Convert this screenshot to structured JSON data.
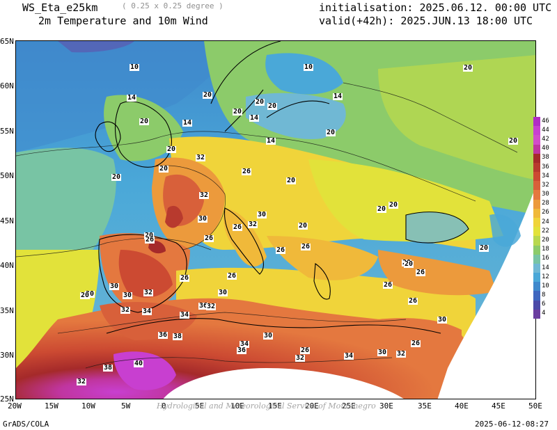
{
  "header": {
    "model": "WS_Eta_e25km",
    "resolution": "( 0.25 x 0.25 degree )",
    "field": "2m Temperature and 10m Wind",
    "init": "initialisation: 2025.06.12. 00:00 UTC",
    "valid": "valid(+42h): 2025.JUN.13 18:00 UTC"
  },
  "axes": {
    "lat_labels": [
      "65N",
      "60N",
      "55N",
      "50N",
      "45N",
      "40N",
      "35N",
      "30N",
      "25N"
    ],
    "lon_labels": [
      "20W",
      "15W",
      "10W",
      "5W",
      "0",
      "5E",
      "10E",
      "15E",
      "20E",
      "25E",
      "30E",
      "35E",
      "40E",
      "45E",
      "50E"
    ]
  },
  "colorbar": {
    "labels": [
      "46",
      "44",
      "42",
      "40",
      "38",
      "36",
      "34",
      "32",
      "30",
      "28",
      "26",
      "24",
      "22",
      "20",
      "18",
      "16",
      "14",
      "12",
      "10",
      "8",
      "6",
      "4"
    ],
    "colors": [
      "#b12cc6",
      "#c83fd0",
      "#d24cc9",
      "#c0359f",
      "#a52a2a",
      "#b83a2e",
      "#cc4a32",
      "#d8603a",
      "#e4783f",
      "#ec9a3c",
      "#f0b93a",
      "#f0d43a",
      "#e2e23a",
      "#b8d84e",
      "#8ccb6a",
      "#78c4a4",
      "#70b8d4",
      "#4aa8d8",
      "#3f89cc",
      "#3f67bf",
      "#4b4aa8",
      "#6b3fa0"
    ]
  },
  "contour_labels": [
    {
      "text": "10"
    },
    {
      "text": "10"
    },
    {
      "text": "20"
    },
    {
      "text": "14"
    },
    {
      "text": "20"
    },
    {
      "text": "20"
    },
    {
      "text": "14"
    },
    {
      "text": "20"
    },
    {
      "text": "14"
    },
    {
      "text": "20"
    },
    {
      "text": "20"
    },
    {
      "text": "14"
    },
    {
      "text": "20"
    },
    {
      "text": "14"
    },
    {
      "text": "20"
    },
    {
      "text": "20"
    },
    {
      "text": "20"
    },
    {
      "text": "32"
    },
    {
      "text": "26"
    },
    {
      "text": "20"
    },
    {
      "text": "32"
    },
    {
      "text": "30"
    },
    {
      "text": "30"
    },
    {
      "text": "26"
    },
    {
      "text": "32"
    },
    {
      "text": "20"
    },
    {
      "text": "20"
    },
    {
      "text": "20"
    },
    {
      "text": "20"
    },
    {
      "text": "26"
    },
    {
      "text": "26"
    },
    {
      "text": "26"
    },
    {
      "text": "26"
    },
    {
      "text": "20"
    },
    {
      "text": "26"
    },
    {
      "text": "26"
    },
    {
      "text": "26"
    },
    {
      "text": "30"
    },
    {
      "text": "20"
    },
    {
      "text": "30"
    },
    {
      "text": "32"
    },
    {
      "text": "26"
    },
    {
      "text": "30"
    },
    {
      "text": "32"
    },
    {
      "text": "36"
    },
    {
      "text": "32"
    },
    {
      "text": "34"
    },
    {
      "text": "34"
    },
    {
      "text": "36"
    },
    {
      "text": "38"
    },
    {
      "text": "34"
    },
    {
      "text": "36"
    },
    {
      "text": "30"
    },
    {
      "text": "26"
    },
    {
      "text": "32"
    },
    {
      "text": "34"
    },
    {
      "text": "30"
    },
    {
      "text": "32"
    },
    {
      "text": "26"
    },
    {
      "text": "30"
    },
    {
      "text": "38"
    },
    {
      "text": "40"
    },
    {
      "text": "32"
    },
    {
      "text": "20"
    },
    {
      "text": "20"
    },
    {
      "text": "20"
    },
    {
      "text": "26"
    },
    {
      "text": "20"
    }
  ],
  "footer": {
    "credit": "GrADS/COLA",
    "timestamp": "2025-06-12-08:27",
    "watermark": "Hydrological and Meteorological Service of Montenegro"
  }
}
